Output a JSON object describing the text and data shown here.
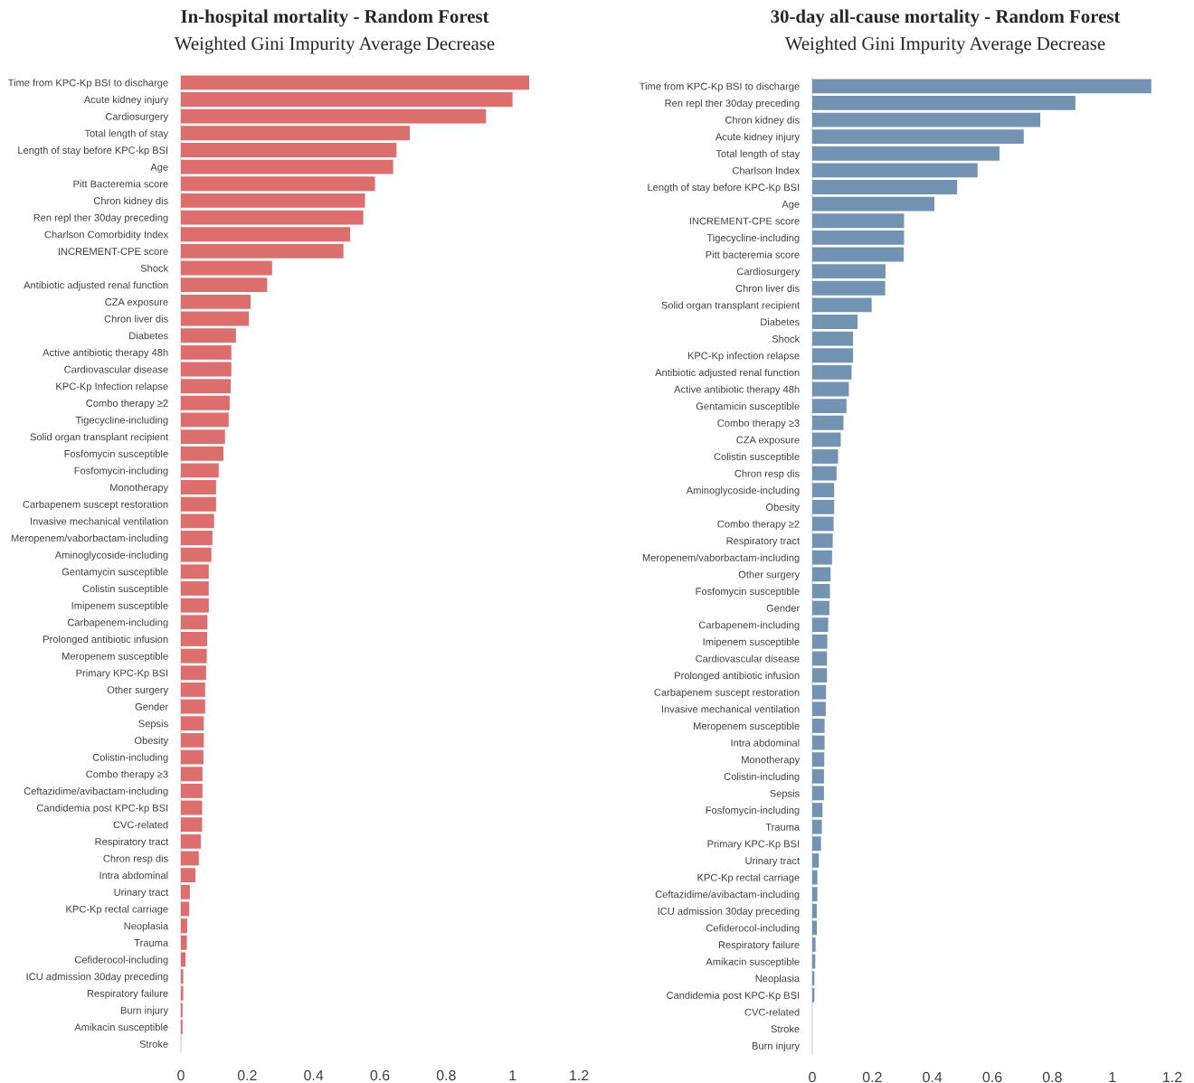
{
  "chart_data": [
    {
      "type": "bar",
      "orientation": "horizontal",
      "title": "In-hospital mortality - Random Forest",
      "subtitle": "Weighted Gini Impurity Average Decrease",
      "color": "#dc6e6e",
      "categories": [
        "Time from KPC-Kp BSI to discharge",
        "Acute kidney injury",
        "Cardiosurgery",
        "Total length of stay",
        "Length of stay before KPC-kp BSI",
        "Age",
        "Pitt Bacteremia score",
        "Chron kidney dis",
        "Ren repl ther 30day preceding",
        "Charlson Comorbidity Index",
        "INCREMENT-CPE score",
        "Shock",
        "Antibiotic adjusted renal function",
        "CZA exposure",
        "Chron liver dis",
        "Diabetes",
        "Active antibiotic therapy 48h",
        "Cardiovascular disease",
        "KPC-Kp Infection relapse",
        "Combo therapy ≥2",
        "Tigecycline-including",
        "Solid organ transplant recipient",
        "Fosfomycin susceptible",
        "Fosfomycin-including",
        "Monotherapy",
        "Carbapenem suscept restoration",
        "Invasive mechanical ventilation",
        "Meropenem/vaborbactam-including",
        "Aminoglycoside-including",
        "Gentamycin susceptible",
        "Colistin susceptible",
        "Imipenem susceptible",
        "Carbapenem-including",
        "Prolonged antibiotic infusion",
        "Meropenem susceptible",
        "Primary KPC-Kp BSI",
        "Other surgery",
        "Gender",
        "Sepsis",
        "Obesity",
        "Colistin-including",
        "Combo therapy ≥3",
        "Ceftazidime/avibactam-including",
        "Candidemia post KPC-kp BSI",
        "CVC-related",
        "Respiratory tract",
        "Chron resp dis",
        "Intra abdominal",
        "Urinary tract",
        "KPC-Kp rectal carriage",
        "Neoplasia",
        "Trauma",
        "Cefiderocol-including",
        "ICU admission 30day preceding",
        "Respiratory failure",
        "Burn injury",
        "Amikacin susceptible",
        "Stroke"
      ],
      "values": [
        1.05,
        1.0,
        0.92,
        0.69,
        0.65,
        0.64,
        0.585,
        0.555,
        0.55,
        0.51,
        0.49,
        0.275,
        0.26,
        0.21,
        0.205,
        0.166,
        0.152,
        0.152,
        0.15,
        0.147,
        0.144,
        0.133,
        0.128,
        0.114,
        0.106,
        0.106,
        0.1,
        0.095,
        0.092,
        0.084,
        0.084,
        0.084,
        0.08,
        0.079,
        0.078,
        0.076,
        0.073,
        0.073,
        0.069,
        0.069,
        0.068,
        0.065,
        0.065,
        0.064,
        0.064,
        0.06,
        0.054,
        0.044,
        0.027,
        0.025,
        0.019,
        0.018,
        0.014,
        0.007,
        0.007,
        0.005,
        0.005,
        0
      ],
      "xlim": [
        0,
        1.2
      ],
      "xticks": [
        0,
        0.2,
        0.4,
        0.6,
        0.8,
        1,
        1.2
      ],
      "grid": false,
      "legend": false
    },
    {
      "type": "bar",
      "orientation": "horizontal",
      "title": "30-day all-cause mortality - Random Forest",
      "subtitle": "Weighted Gini Impurity Average Decrease",
      "color": "#7393b3",
      "categories": [
        "Time from KPC-Kp BSI to discharge",
        "Ren repl ther 30day preceding",
        "Chron kidney dis",
        "Acute kidney injury",
        "Total length of stay",
        "Charlson Index",
        "Length of stay before KPC-Kp BSI",
        "Age",
        "INCREMENT-CPE score",
        "Tigecycline-including",
        "Pitt bacteremia score",
        "Cardiosurgery",
        "Chron liver dis",
        "Solid organ transplant recipient",
        "Diabetes",
        "Shock",
        "KPC-Kp infection relapse",
        "Antibiotic adjusted renal function",
        "Active antibiotic therapy 48h",
        "Gentamicin susceptible",
        "Combo therapy ≥3",
        "CZA exposure",
        "Colistin susceptible",
        "Chron resp dis",
        "Aminoglycoside-including",
        "Obesity",
        "Combo therapy ≥2",
        "Respiratory tract",
        "Meropenem/vaborbactam-including",
        "Other surgery",
        "Fosfomycin susceptible",
        "Gender",
        "Carbapenem-including",
        "Imipenem susceptible",
        "Cardiovascular disease",
        "Prolonged antibiotic infusion",
        "Carbapenem suscept restoration",
        "Invasive mechanical ventilation",
        "Meropenem susceptible",
        "Intra abdominal",
        "Monotherapy",
        "Colistin-including",
        "Sepsis",
        "Fosfomycin-including",
        "Trauma",
        "Primary KPC-Kp BSI",
        "Urinary tract",
        "KPC-Kp rectal carriage",
        "Ceftazidime/avibactam-including",
        "ICU admission 30day preceding",
        "Cefiderocol-including",
        "Respiratory failure",
        "Amikacin susceptible",
        "Neoplasia",
        "Candidemia post KPC-Kp BSI",
        "CVC-related",
        "Stroke",
        "Burn injury"
      ],
      "values": [
        1.13,
        0.877,
        0.76,
        0.705,
        0.624,
        0.551,
        0.483,
        0.407,
        0.306,
        0.306,
        0.305,
        0.244,
        0.243,
        0.198,
        0.151,
        0.136,
        0.136,
        0.131,
        0.122,
        0.114,
        0.104,
        0.095,
        0.086,
        0.081,
        0.073,
        0.073,
        0.071,
        0.068,
        0.066,
        0.061,
        0.059,
        0.057,
        0.053,
        0.05,
        0.049,
        0.049,
        0.046,
        0.045,
        0.041,
        0.041,
        0.04,
        0.039,
        0.039,
        0.034,
        0.032,
        0.029,
        0.022,
        0.017,
        0.017,
        0.015,
        0.015,
        0.011,
        0.01,
        0.007,
        0.007,
        0,
        0,
        0
      ],
      "xlim": [
        0,
        1.2
      ],
      "xticks": [
        0,
        0.2,
        0.4,
        0.6,
        0.8,
        1,
        1.2
      ],
      "grid": false,
      "legend": false
    }
  ]
}
